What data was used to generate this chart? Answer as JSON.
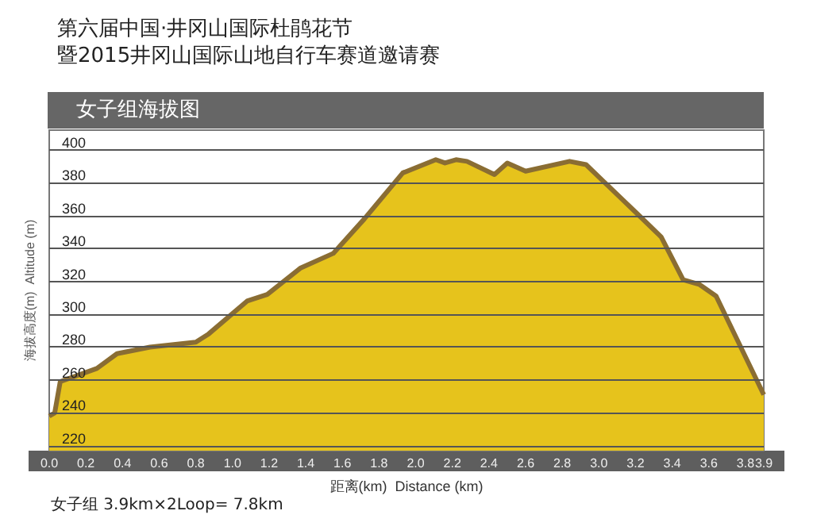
{
  "chart_data": {
    "type": "area",
    "title": "第六届中国·井冈山国际杜鹃花节暨2015井冈山国际山地自行车赛道邀请赛",
    "subtitle": "女子组海拔图",
    "xlabel": "距离(km)  Distance (km)",
    "ylabel": "海拔高度(m)  Altitude (m)",
    "annotations": [
      "女子组 3.9km×2Loop= 7.8km"
    ],
    "x": [
      0,
      0.03,
      0.06,
      0.26,
      0.37,
      0.55,
      0.8,
      0.87,
      1.08,
      1.19,
      1.37,
      1.55,
      1.72,
      1.93,
      2.11,
      2.16,
      2.22,
      2.28,
      2.43,
      2.5,
      2.6,
      2.84,
      2.93,
      3.22,
      3.34,
      3.46,
      3.55,
      3.64,
      3.9
    ],
    "series": [
      {
        "color": "#e6c31c",
        "values": [
          238,
          240,
          259,
          267,
          276,
          280,
          283,
          288,
          308,
          312,
          328,
          337,
          358,
          386,
          394,
          392,
          394,
          393,
          385,
          392,
          387,
          393,
          391,
          360,
          347,
          321,
          318,
          311,
          251
        ]
      }
    ],
    "xlim": [
      0,
      3.9
    ],
    "ylim": [
      217,
      412
    ],
    "xticks": [
      {
        "value": 0,
        "label": "0.0"
      },
      {
        "value": 0.2,
        "label": "0.2"
      },
      {
        "value": 0.4,
        "label": "0.4"
      },
      {
        "value": 0.6,
        "label": "0.6"
      },
      {
        "value": 0.8,
        "label": "0.8"
      },
      {
        "value": 1,
        "label": "1.0"
      },
      {
        "value": 1.2,
        "label": "1.2"
      },
      {
        "value": 1.4,
        "label": "1.4"
      },
      {
        "value": 1.6,
        "label": "1.6"
      },
      {
        "value": 1.8,
        "label": "1.8"
      },
      {
        "value": 2,
        "label": "2.0"
      },
      {
        "value": 2.2,
        "label": "2.2"
      },
      {
        "value": 2.4,
        "label": "2.4"
      },
      {
        "value": 2.6,
        "label": "2.6"
      },
      {
        "value": 2.8,
        "label": "2.8"
      },
      {
        "value": 3,
        "label": "3.0"
      },
      {
        "value": 3.2,
        "label": "3.2"
      },
      {
        "value": 3.4,
        "label": "3.4"
      },
      {
        "value": 3.6,
        "label": "3.6"
      },
      {
        "value": 3.8,
        "label": "3.8"
      },
      {
        "value": 3.9,
        "label": "3.9"
      }
    ],
    "yticks": [
      220,
      240,
      260,
      280,
      300,
      320,
      340,
      360,
      380,
      400
    ],
    "grid": "y",
    "marker": "none"
  }
}
